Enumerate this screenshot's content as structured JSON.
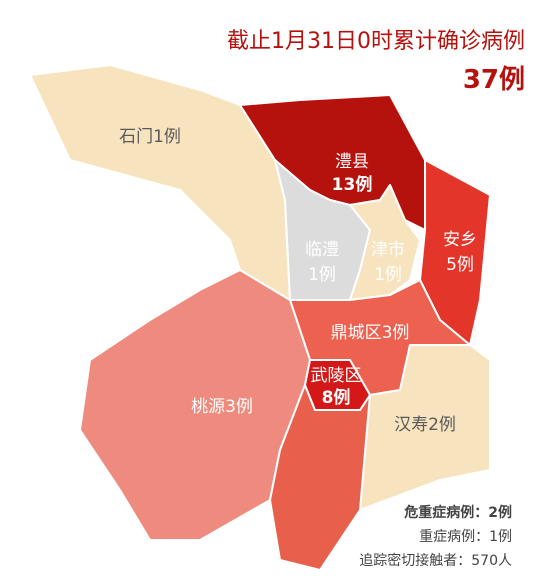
{
  "header": {
    "title": "截止1月31日0时累计确诊病例",
    "total": "37例"
  },
  "regions": [
    {
      "name": "石门1例"
    },
    {
      "name": "澧县",
      "cases": "13例"
    },
    {
      "name": "临澧",
      "cases": "1例"
    },
    {
      "name": "津市",
      "cases": "1例"
    },
    {
      "name": "安乡",
      "cases": "5例"
    },
    {
      "name": "鼎城区3例"
    },
    {
      "name": "武陵区",
      "cases": "8例"
    },
    {
      "name": "桃源3例"
    },
    {
      "name": "汉寿2例"
    }
  ],
  "footer": [
    "危重症病例：2例",
    "重症病例：1例",
    "追踪密切接触者：570人"
  ]
}
